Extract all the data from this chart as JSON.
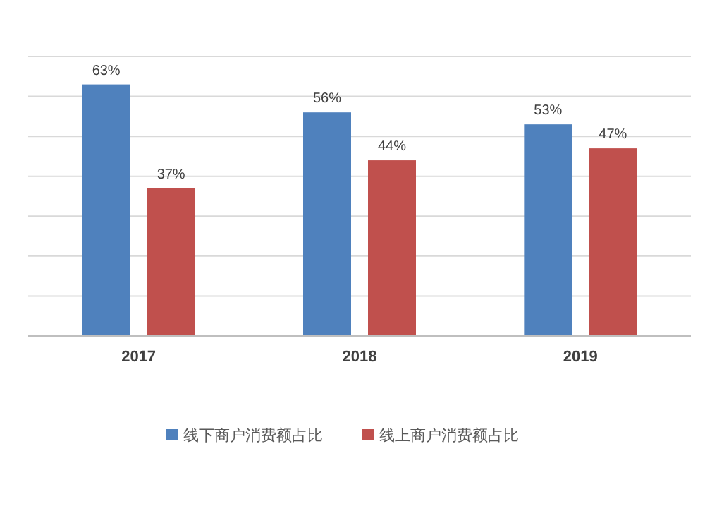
{
  "chart_data": {
    "type": "bar",
    "categories": [
      "2017",
      "2018",
      "2019"
    ],
    "series": [
      {
        "name": "线下商户消费额占比",
        "color": "#4f81bd",
        "values": [
          63,
          56,
          53
        ],
        "value_labels": [
          "63%",
          "56%",
          "53%"
        ]
      },
      {
        "name": "线上商户消费额占比",
        "color": "#c0504d",
        "values": [
          37,
          44,
          47
        ],
        "value_labels": [
          "37%",
          "44%",
          "47%"
        ]
      }
    ],
    "ylim": [
      0,
      70
    ],
    "yticks": [
      {
        "value": 0,
        "label": null
      },
      {
        "value": 10,
        "label": null
      },
      {
        "value": 20,
        "label": null
      },
      {
        "value": 30,
        "label": null
      },
      {
        "value": 40,
        "label": null
      },
      {
        "value": 50,
        "label": null
      },
      {
        "value": 60,
        "label": null
      },
      {
        "value": 70,
        "label": null
      }
    ],
    "tick_labels": "x",
    "grid": "y",
    "legend": "bottom"
  }
}
